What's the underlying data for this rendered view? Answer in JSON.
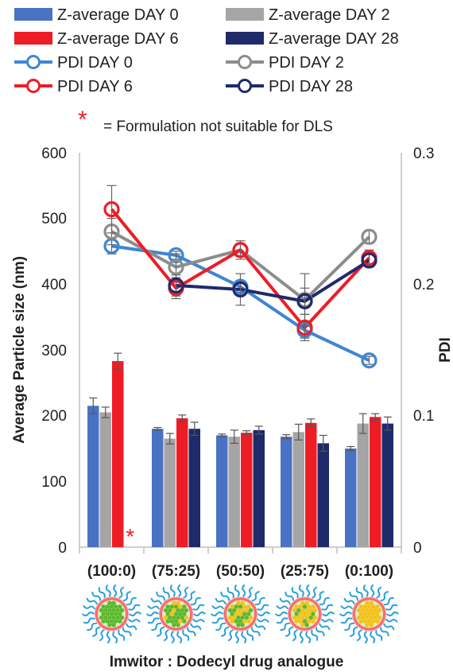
{
  "chart_data": {
    "type": "bar",
    "xlabel": "Imwitor : Dodecyl drug analogue",
    "ylabel": "Average Particle size (nm)",
    "y2label": "PDI",
    "ylim": [
      0,
      600
    ],
    "y2lim": [
      0,
      0.3
    ],
    "yticks": [
      "0",
      "100",
      "200",
      "300",
      "400",
      "500",
      "600"
    ],
    "y2ticks": [
      "0",
      "0.1",
      "0.2",
      "0.3"
    ],
    "grid": false,
    "legend_position": "top",
    "categories": [
      "(100:0)",
      "(75:25)",
      "(50:50)",
      "(25:75)",
      "(0:100)"
    ],
    "note_symbol": "*",
    "note_text": "= Formulation not suitable for DLS",
    "missing_marker": {
      "category": "(100:0)",
      "series": "Z-average DAY 28",
      "symbol": "*"
    },
    "bar_series": [
      {
        "name": "Z-average DAY 0",
        "color": "#4a72c4",
        "values": [
          215,
          180,
          170,
          168,
          150
        ],
        "errors": [
          12,
          2,
          2,
          3,
          3
        ]
      },
      {
        "name": "Z-average DAY 2",
        "color": "#a5a5a5",
        "values": [
          205,
          165,
          168,
          175,
          188
        ],
        "errors": [
          8,
          8,
          10,
          12,
          15
        ]
      },
      {
        "name": "Z-average DAY 6",
        "color": "#ee1c25",
        "values": [
          283,
          196,
          174,
          189,
          198
        ],
        "errors": [
          12,
          5,
          3,
          6,
          5
        ]
      },
      {
        "name": "Z-average DAY 28",
        "color": "#1f2a6b",
        "values": [
          null,
          180,
          178,
          158,
          188
        ],
        "errors": [
          0,
          10,
          6,
          12,
          10
        ]
      }
    ],
    "line_series": [
      {
        "name": "PDI DAY 0",
        "color": "#3d86d4",
        "values": [
          0.229,
          0.222,
          0.198,
          0.165,
          0.142
        ],
        "errors": [
          0.006,
          0.003,
          0.004,
          0.006,
          0.003
        ]
      },
      {
        "name": "PDI DAY 2",
        "color": "#8c8c8c",
        "values": [
          0.24,
          0.213,
          0.226,
          0.188,
          0.236
        ],
        "errors": [
          0.01,
          0.01,
          0.007,
          0.02,
          0.005
        ]
      },
      {
        "name": "PDI DAY 6",
        "color": "#ee1c25",
        "values": [
          0.257,
          0.197,
          0.226,
          0.167,
          0.22
        ],
        "errors": [
          0.018,
          0.008,
          0.005,
          0.01,
          0.006
        ]
      },
      {
        "name": "PDI DAY 28",
        "color": "#1f2a6b",
        "values": [
          null,
          0.199,
          0.196,
          0.187,
          0.218
        ],
        "errors": [
          0,
          0.008,
          0.012,
          0.01,
          0.005
        ]
      }
    ]
  },
  "colors": {
    "micelle_chain": "#2aa0d8",
    "micelle_shell": "#ff6a6a",
    "core_green": "#5cb82e",
    "core_yellow": "#f4c21a"
  },
  "micelle_yellow_fractions": [
    0,
    0.25,
    0.5,
    0.75,
    1
  ]
}
